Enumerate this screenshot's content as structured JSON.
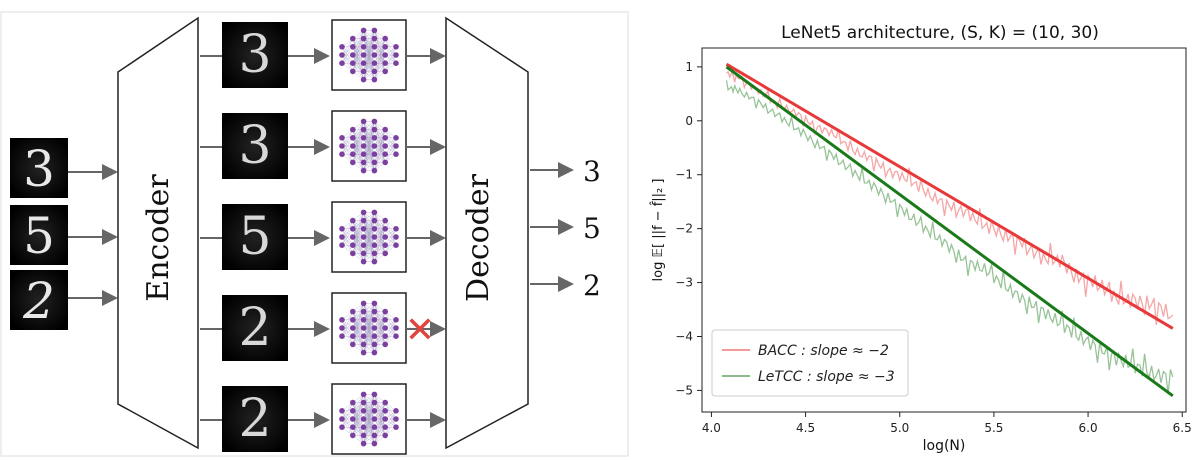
{
  "diagram": {
    "encoder_label": "Encoder",
    "decoder_label": "Decoder",
    "input_digits": [
      "3",
      "5",
      "2"
    ],
    "coded_digits": [
      "3",
      "3",
      "5",
      "2",
      "2"
    ],
    "outputs": [
      "3",
      "5",
      "2"
    ],
    "failed_worker_marker": "✕",
    "failed_worker_index": 3,
    "colors": {
      "node": "#7b3fa0",
      "edge": "#8a7fb0",
      "fail": "#e0443e",
      "arrow": "#666666"
    }
  },
  "chart_data": {
    "type": "line",
    "title": "LeNet5 architecture, (S, K) = (10, 30)",
    "xlabel": "log(N)",
    "ylabel": "log 𝔼[ ||f − f̂||₂ ]",
    "xlim": [
      3.95,
      6.52
    ],
    "ylim": [
      -5.4,
      1.35
    ],
    "xticks": [
      4.0,
      4.5,
      5.0,
      5.5,
      6.0,
      6.5
    ],
    "xtick_labels": [
      "4.0",
      "4.5",
      "5.0",
      "5.5",
      "6.0",
      "6.5"
    ],
    "yticks": [
      1,
      0,
      -1,
      -2,
      -3,
      -4,
      -5
    ],
    "ytick_labels": [
      "1",
      "0",
      "−1",
      "−2",
      "−3",
      "−4",
      "−5"
    ],
    "grid": false,
    "legend_position": "bottom-left",
    "series": [
      {
        "name": "BACC : slope ≈ −2",
        "color": "#e8393a",
        "fit": {
          "x": [
            4.08,
            6.45
          ],
          "y": [
            1.05,
            -3.85
          ]
        },
        "noisy": {
          "x": [
            4.08,
            4.15,
            4.25,
            4.35,
            4.45,
            4.55,
            4.65,
            4.75,
            4.85,
            4.95,
            5.05,
            5.15,
            5.25,
            5.35,
            5.45,
            5.55,
            5.65,
            5.75,
            5.85,
            5.95,
            6.05,
            6.15,
            6.25,
            6.35,
            6.45
          ],
          "y": [
            0.88,
            0.8,
            0.55,
            0.3,
            0.15,
            -0.1,
            -0.25,
            -0.55,
            -0.7,
            -0.95,
            -1.1,
            -1.35,
            -1.55,
            -1.7,
            -1.95,
            -2.1,
            -2.25,
            -2.55,
            -2.6,
            -2.9,
            -3.0,
            -3.3,
            -3.35,
            -3.4,
            -3.6
          ]
        }
      },
      {
        "name": "LeTCC : slope ≈ −3",
        "color": "#1a7a1a",
        "fit": {
          "x": [
            4.08,
            6.45
          ],
          "y": [
            1.0,
            -5.1
          ]
        },
        "noisy": {
          "x": [
            4.08,
            4.15,
            4.25,
            4.35,
            4.45,
            4.55,
            4.65,
            4.75,
            4.85,
            4.95,
            5.05,
            5.15,
            5.25,
            5.35,
            5.45,
            5.55,
            5.65,
            5.75,
            5.85,
            5.95,
            6.05,
            6.15,
            6.25,
            6.35,
            6.45
          ],
          "y": [
            0.62,
            0.55,
            0.35,
            0.1,
            -0.15,
            -0.4,
            -0.65,
            -0.95,
            -1.2,
            -1.45,
            -1.75,
            -2.05,
            -2.3,
            -2.6,
            -2.75,
            -3.05,
            -3.3,
            -3.5,
            -3.75,
            -4.0,
            -4.2,
            -4.4,
            -4.55,
            -4.7,
            -4.75
          ]
        }
      }
    ]
  }
}
